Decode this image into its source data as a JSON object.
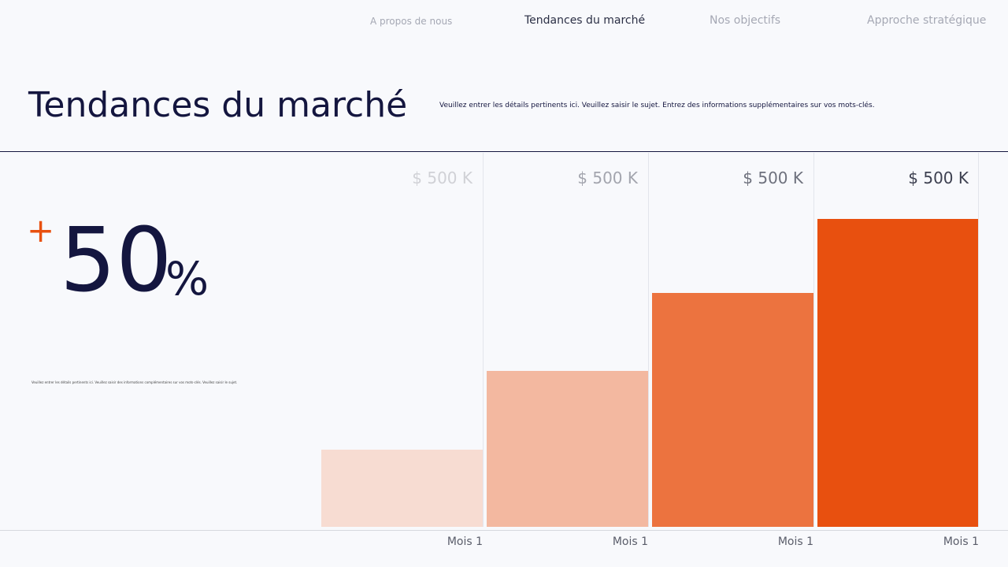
{
  "nav": [
    "A propos de nous",
    "Tendances du marché",
    "Nos objectifs",
    "Approche stratégique"
  ],
  "header": {
    "title": "Tendances du marché",
    "description": "Veuillez entrer les détails pertinents ici. Veuillez saisir le sujet. Entrez des informations supplémentaires sur vos mots-clés."
  },
  "stat": {
    "sign": "+",
    "number": "50",
    "unit": "%",
    "note": "Veuillez entrer les détails pertinents ici. Veuillez saisir des informations complémentaires sur vos mots-clés. Veuillez saisir le sujet."
  },
  "columns": [
    {
      "label": "$ 500 K",
      "month": "Mois 1"
    },
    {
      "label": "$ 500 K",
      "month": "Mois 1"
    },
    {
      "label": "$ 500 K",
      "month": "Mois 1"
    },
    {
      "label": "$ 500 K",
      "month": "Mois 1"
    }
  ]
}
